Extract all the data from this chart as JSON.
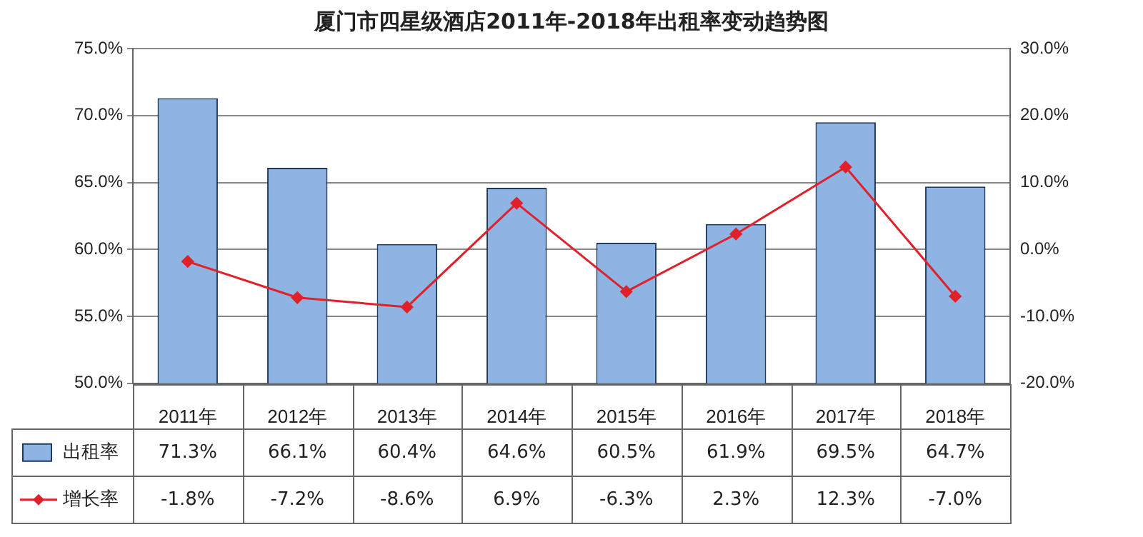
{
  "chart_data": {
    "type": "bar",
    "title": "厦门市四星级酒店2011年-2018年出租率变动趋势图",
    "categories": [
      "2011年",
      "2012年",
      "2013年",
      "2014年",
      "2015年",
      "2016年",
      "2017年",
      "2018年"
    ],
    "series": [
      {
        "name": "出租率",
        "color": "#8db4e2",
        "values": [
          71.3,
          66.1,
          60.4,
          64.6,
          60.5,
          61.9,
          69.5,
          64.7
        ],
        "value_labels": [
          "71.3%",
          "66.1%",
          "60.4%",
          "64.6%",
          "60.5%",
          "61.9%",
          "69.5%",
          "64.7%"
        ]
      },
      {
        "name": "增长率",
        "type": "line",
        "axis": "y2",
        "color": "#e0202a",
        "marker": "diamond",
        "values": [
          -1.8,
          -7.2,
          -8.6,
          6.9,
          -6.3,
          2.3,
          12.3,
          -7.0
        ],
        "value_labels": [
          "-1.8%",
          "-7.2%",
          "-8.6%",
          "6.9%",
          "-6.3%",
          "2.3%",
          "12.3%",
          "-7.0%"
        ]
      }
    ],
    "ylim": [
      50,
      75
    ],
    "yticks": [
      {
        "value": 50,
        "label": "50.0%"
      },
      {
        "value": 55,
        "label": "55.0%"
      },
      {
        "value": 60,
        "label": "60.0%"
      },
      {
        "value": 65,
        "label": "65.0%"
      },
      {
        "value": 70,
        "label": "70.0%"
      },
      {
        "value": 75,
        "label": "75.0%"
      }
    ],
    "y2lim": [
      -20,
      30
    ],
    "y2ticks": [
      {
        "value": -20,
        "label": "-20.0%"
      },
      {
        "value": -10,
        "label": "-10.0%"
      },
      {
        "value": 0,
        "label": "0.0%"
      },
      {
        "value": 10,
        "label": "10.0%"
      },
      {
        "value": 20,
        "label": "20.0%"
      },
      {
        "value": 30,
        "label": "30.0%"
      }
    ],
    "grid": "y",
    "legend": "bottom left"
  }
}
